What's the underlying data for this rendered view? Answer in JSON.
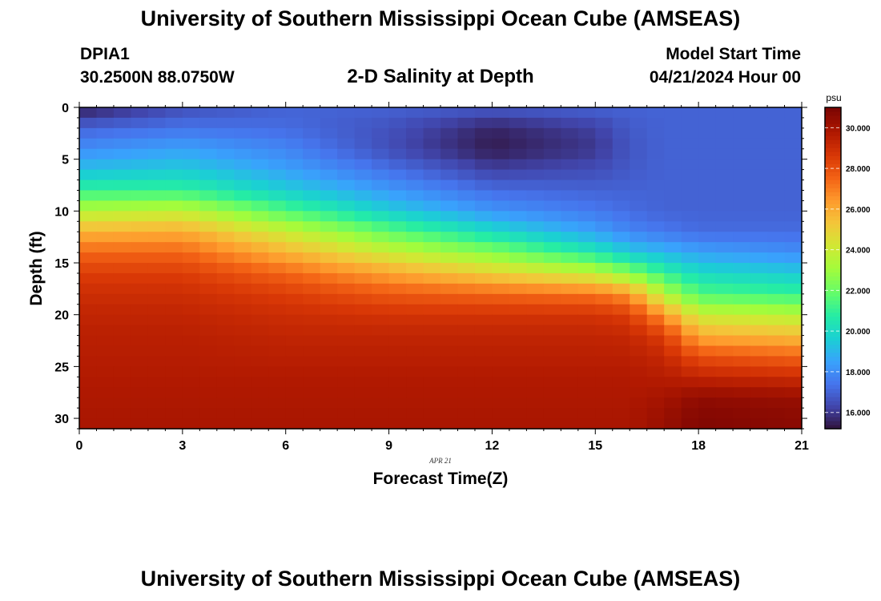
{
  "header": {
    "title": "University of Southern Mississippi Ocean Cube (AMSEAS)",
    "station": "DPIA1",
    "coords": "30.2500N  88.0750W",
    "subtitle": "2-D Salinity at Depth",
    "start_label": "Model Start Time",
    "start_value": "04/21/2024 Hour 00"
  },
  "footer": {
    "title": "University of Southern Mississippi Ocean Cube (AMSEAS)"
  },
  "chart_data": {
    "type": "heatmap",
    "title": "2-D Salinity at Depth",
    "xlabel": "Forecast Time(Z)",
    "ylabel": "Depth (ft)",
    "date_label": "APR 21",
    "xlim": [
      0,
      21
    ],
    "ylim": [
      31,
      0
    ],
    "x_ticks": [
      0,
      3,
      6,
      9,
      12,
      15,
      18,
      21
    ],
    "x_tick_labels": [
      "0",
      "3",
      "6",
      "9",
      "12",
      "15",
      "18",
      "21"
    ],
    "y_ticks": [
      0,
      5,
      10,
      15,
      20,
      25,
      30
    ],
    "y_tick_labels": [
      "0",
      "5",
      "10",
      "15",
      "20",
      "25",
      "30"
    ],
    "colorbar": {
      "unit": "psu",
      "range": [
        15.2,
        31.0
      ],
      "ticks": [
        16,
        18,
        20,
        22,
        24,
        26,
        28,
        30
      ],
      "tick_labels": [
        "16.000",
        "18.000",
        "20.000",
        "22.000",
        "24.000",
        "26.000",
        "28.000",
        "30.000"
      ]
    },
    "hours": [
      0,
      3,
      6,
      9,
      12,
      15,
      16,
      17,
      18,
      21
    ],
    "depths": [
      0,
      2,
      4,
      6,
      8,
      10,
      12,
      14,
      16,
      18,
      20,
      22,
      24,
      26,
      28,
      30,
      31
    ],
    "salinity": [
      [
        15.4,
        16.5,
        17.0,
        17.0,
        16.8,
        17.0,
        17.0,
        17.0,
        17.0,
        17.0
      ],
      [
        17.0,
        17.4,
        17.2,
        16.6,
        15.6,
        16.2,
        16.8,
        17.0,
        17.0,
        17.0
      ],
      [
        18.0,
        18.5,
        17.8,
        16.5,
        15.4,
        16.0,
        16.7,
        17.0,
        17.0,
        17.0
      ],
      [
        19.2,
        19.5,
        18.5,
        17.3,
        16.2,
        16.5,
        16.8,
        17.0,
        17.0,
        17.0
      ],
      [
        21.0,
        21.0,
        19.6,
        18.3,
        17.2,
        17.0,
        17.0,
        17.0,
        17.0,
        17.0
      ],
      [
        23.5,
        23.8,
        21.5,
        19.6,
        18.2,
        17.5,
        17.2,
        17.0,
        17.0,
        17.0
      ],
      [
        25.8,
        26.0,
        24.0,
        21.8,
        20.0,
        18.5,
        17.8,
        17.5,
        17.2,
        17.2
      ],
      [
        27.5,
        27.5,
        25.8,
        24.0,
        22.5,
        20.5,
        19.5,
        19.0,
        18.5,
        18.0
      ],
      [
        28.5,
        28.5,
        27.5,
        26.2,
        25.0,
        23.8,
        22.5,
        21.0,
        20.0,
        19.5
      ],
      [
        29.0,
        29.0,
        28.5,
        27.8,
        27.5,
        27.2,
        26.5,
        23.5,
        21.5,
        21.0
      ],
      [
        29.3,
        29.3,
        29.0,
        28.8,
        28.8,
        28.8,
        28.5,
        26.5,
        24.0,
        23.5
      ],
      [
        29.5,
        29.5,
        29.3,
        29.3,
        29.3,
        29.3,
        29.2,
        28.5,
        26.0,
        25.5
      ],
      [
        29.6,
        29.6,
        29.5,
        29.5,
        29.5,
        29.5,
        29.5,
        29.2,
        28.0,
        27.5
      ],
      [
        29.7,
        29.7,
        29.7,
        29.7,
        29.7,
        29.7,
        29.7,
        29.6,
        29.3,
        29.0
      ],
      [
        29.8,
        29.8,
        29.8,
        29.8,
        29.8,
        29.8,
        29.8,
        30.0,
        30.5,
        30.3
      ],
      [
        29.9,
        29.9,
        29.9,
        29.9,
        29.9,
        29.9,
        29.9,
        30.3,
        30.8,
        30.6
      ],
      [
        29.9,
        29.9,
        29.9,
        29.9,
        29.9,
        29.9,
        29.9,
        30.3,
        30.8,
        30.6
      ]
    ],
    "colormap": [
      [
        0.0,
        "#30123b"
      ],
      [
        0.07,
        "#4145ab"
      ],
      [
        0.14,
        "#4675ed"
      ],
      [
        0.21,
        "#39a2fc"
      ],
      [
        0.28,
        "#1bcfd4"
      ],
      [
        0.35,
        "#24eca6"
      ],
      [
        0.42,
        "#61fc6c"
      ],
      [
        0.5,
        "#a4fc3b"
      ],
      [
        0.57,
        "#d1e834"
      ],
      [
        0.64,
        "#f3c63a"
      ],
      [
        0.71,
        "#fe9b2d"
      ],
      [
        0.78,
        "#f36315"
      ],
      [
        0.85,
        "#d93806"
      ],
      [
        0.92,
        "#b11901"
      ],
      [
        1.0,
        "#7a0402"
      ]
    ]
  }
}
